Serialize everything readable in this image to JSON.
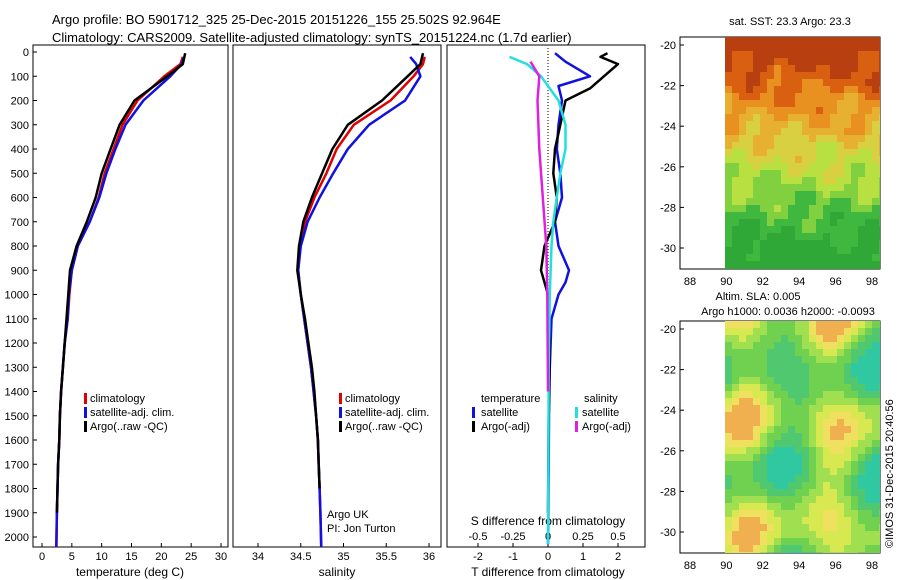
{
  "header": {
    "title_line1": "Argo profile: BO 5901712_325 25-Dec-2015 20151226_155 25.502S 92.964E",
    "title_line2": "Climatology: CARS2009. Satellite-adjusted climatology: synTS_20151224.nc (1.7d earlier)"
  },
  "panels": {
    "temperature": {
      "xlabel": "temperature (deg C)",
      "xticks": [
        "0",
        "5",
        "10",
        "15",
        "20",
        "25",
        "30"
      ],
      "legend": [
        "climatology",
        "satellite-adj. clim.",
        "Argo(..raw -QC)"
      ]
    },
    "salinity": {
      "xlabel": "salinity",
      "xticks": [
        "34",
        "34.5",
        "35",
        "35.5",
        "36"
      ],
      "legend": [
        "climatology",
        "satellite-adj. clim.",
        "Argo(..raw -QC)"
      ],
      "note_line1": "Argo UK",
      "note_line2": "PI: Jon Turton"
    },
    "difference": {
      "xlabel": "T difference from climatology",
      "xticks": [
        "-2",
        "-1",
        "0",
        "1",
        "2"
      ],
      "s_label": "S difference from climatology",
      "s_ticks": [
        "-0.5",
        "-0.25",
        "0",
        "0.25",
        "0.5"
      ],
      "legend_t_title": "temperature",
      "legend_s_title": "salinity",
      "legend_t": [
        "satellite",
        "Argo(-adj)"
      ],
      "legend_s": [
        "satellite",
        "Argo(-adj)"
      ]
    },
    "depth_ticks": [
      "0",
      "100",
      "200",
      "300",
      "400",
      "500",
      "600",
      "700",
      "800",
      "900",
      "1000",
      "1100",
      "1200",
      "1300",
      "1400",
      "1500",
      "1600",
      "1700",
      "1800",
      "1900",
      "2000"
    ]
  },
  "maps": {
    "sst_title": "sat. SST: 23.3 Argo: 23.3",
    "sla_title_line1": "Altim. SLA: 0.005",
    "sla_title_line2": "Argo h1000: 0.0036 h2000: -0.0093",
    "lat_ticks": [
      "-20",
      "-22",
      "-24",
      "-26",
      "-28",
      "-30"
    ],
    "lon_ticks": [
      "88",
      "90",
      "92",
      "94",
      "96",
      "98"
    ],
    "credit": "©IMOS 31-Dec-2015 20:40:56"
  },
  "colors": {
    "climatology": "#e00000",
    "satellite": "#1010e0",
    "argo": "#000000",
    "satellite_s": "#22e0e0",
    "argo_s": "#e020e0"
  },
  "chart_data": [
    {
      "type": "line",
      "xlabel": "temperature (deg C)",
      "ylabel": "",
      "xlim": [
        0,
        31
      ],
      "ylim": [
        2070,
        0
      ],
      "series": [
        {
          "name": "climatology",
          "x": [
            23.6,
            23.2,
            20.5,
            16,
            13.5,
            12,
            10.5,
            9.5,
            8,
            6,
            5,
            4.6,
            4.3,
            3.8,
            3.5,
            3.2,
            3,
            2.9,
            2.7,
            2.6,
            2.5,
            2.4
          ],
          "y": [
            20,
            50,
            100,
            200,
            300,
            400,
            500,
            600,
            700,
            800,
            900,
            1000,
            1100,
            1200,
            1300,
            1400,
            1500,
            1600,
            1700,
            1800,
            1900,
            2050
          ]
        },
        {
          "name": "satellite-adj. clim.",
          "x": [
            23.8,
            23.4,
            21.5,
            17,
            14,
            12.3,
            10.8,
            9.6,
            8,
            6,
            5,
            4.5,
            4.3,
            3.8,
            3.5,
            3.2,
            3,
            2.9,
            2.7,
            2.6,
            2.5,
            2.4
          ],
          "y": [
            20,
            50,
            100,
            200,
            300,
            400,
            500,
            600,
            700,
            800,
            900,
            1000,
            1100,
            1200,
            1300,
            1400,
            1500,
            1600,
            1700,
            1800,
            1900,
            2050
          ]
        },
        {
          "name": "Argo(..raw -QC)",
          "x": [
            24,
            23.6,
            21,
            15.5,
            13,
            11.5,
            10,
            9,
            7.5,
            5.8,
            4.7,
            4.4,
            4.1,
            3.8,
            3.5,
            3.2,
            3,
            2.9,
            2.7,
            2.6,
            2.5
          ],
          "y": [
            5,
            50,
            100,
            200,
            300,
            400,
            500,
            600,
            700,
            800,
            900,
            1000,
            1100,
            1200,
            1300,
            1400,
            1500,
            1600,
            1700,
            1800,
            1900
          ]
        }
      ]
    },
    {
      "type": "line",
      "xlabel": "salinity",
      "ylabel": "",
      "xlim": [
        33.82,
        36.08
      ],
      "ylim": [
        2070,
        0
      ],
      "series": [
        {
          "name": "climatology",
          "x": [
            35.95,
            35.93,
            35.82,
            35.55,
            35.12,
            34.92,
            34.8,
            34.66,
            34.55,
            34.49,
            34.47,
            34.5,
            34.54,
            34.58,
            34.62,
            34.65,
            34.68,
            34.7,
            34.71,
            34.72,
            34.73,
            34.74
          ],
          "y": [
            20,
            50,
            100,
            200,
            300,
            400,
            500,
            600,
            700,
            800,
            900,
            1000,
            1100,
            1200,
            1300,
            1400,
            1500,
            1600,
            1700,
            1800,
            1900,
            2050
          ]
        },
        {
          "name": "satellite-adj. clim.",
          "x": [
            35.78,
            35.85,
            35.9,
            35.72,
            35.3,
            35.05,
            34.88,
            34.72,
            34.58,
            34.5,
            34.47,
            34.5,
            34.54,
            34.58,
            34.62,
            34.65,
            34.68,
            34.7,
            34.71,
            34.72,
            34.73,
            34.74
          ],
          "y": [
            20,
            50,
            100,
            200,
            300,
            400,
            500,
            600,
            700,
            800,
            900,
            1000,
            1100,
            1200,
            1300,
            1400,
            1500,
            1600,
            1700,
            1800,
            1900,
            2050
          ]
        },
        {
          "name": "Argo(..raw -QC)",
          "x": [
            35.93,
            35.9,
            35.75,
            35.45,
            35.05,
            34.87,
            34.75,
            34.63,
            34.53,
            34.48,
            34.46,
            34.5,
            34.55,
            34.59,
            34.63,
            34.66,
            34.68,
            34.7,
            34.71,
            34.72
          ],
          "y": [
            5,
            50,
            100,
            200,
            300,
            400,
            500,
            600,
            700,
            800,
            900,
            1000,
            1100,
            1200,
            1300,
            1400,
            1500,
            1600,
            1700,
            1800
          ]
        }
      ]
    },
    {
      "type": "line",
      "xlabel": "T difference from climatology",
      "ylabel": "",
      "xlim": [
        -2.9,
        3.1
      ],
      "ylim": [
        2070,
        0
      ],
      "series": [
        {
          "name": "temperature satellite",
          "x": [
            0.2,
            0.5,
            1.2,
            0.3,
            0.4,
            0.3,
            0.25,
            0.35,
            0.4,
            0.2,
            0.3,
            0.6,
            0.5,
            0.3,
            0.1,
            0.05,
            0.03,
            0.02,
            0.01,
            0.0
          ],
          "y": [
            5,
            40,
            100,
            140,
            200,
            300,
            400,
            500,
            600,
            700,
            800,
            900,
            950,
            1000,
            1100,
            1300,
            1500,
            1700,
            1900,
            2030
          ]
        },
        {
          "name": "temperature Argo(-adj)",
          "x": [
            1.7,
            1.5,
            2,
            1.2,
            0.5,
            0.35,
            0.2,
            0.15,
            0.25,
            0.2,
            -0.1,
            -0.2,
            0.0,
            0.05,
            0.02,
            0.0
          ],
          "y": [
            5,
            20,
            50,
            150,
            200,
            300,
            400,
            500,
            600,
            700,
            800,
            900,
            1000,
            1200,
            1500,
            1900
          ]
        },
        {
          "name": "salinity satellite",
          "x": [
            -1.1,
            -0.6,
            -0.2,
            0.3,
            0.5,
            0.5,
            0.35,
            0.25,
            0.15,
            0.1,
            0.05,
            0.02,
            0.01,
            0.0
          ],
          "y": [
            20,
            50,
            100,
            200,
            300,
            400,
            500,
            600,
            700,
            800,
            1000,
            1300,
            1700,
            2030
          ]
        },
        {
          "name": "salinity Argo(-adj)",
          "x": [
            -0.5,
            -0.25,
            -0.3,
            -0.25,
            -0.15,
            -0.05,
            -0.02,
            0.0
          ],
          "y": [
            40,
            100,
            200,
            400,
            600,
            800,
            1000,
            1400
          ]
        }
      ]
    },
    {
      "type": "heatmap",
      "title": "sat. SST: 23.3 Argo: 23.3",
      "xlim": [
        87,
        99
      ],
      "ylim": [
        -31.5,
        -19.3
      ]
    },
    {
      "type": "heatmap",
      "title": "Altim. SLA: 0.005",
      "xlim": [
        87,
        99
      ],
      "ylim": [
        -31.5,
        -19.3
      ]
    }
  ]
}
